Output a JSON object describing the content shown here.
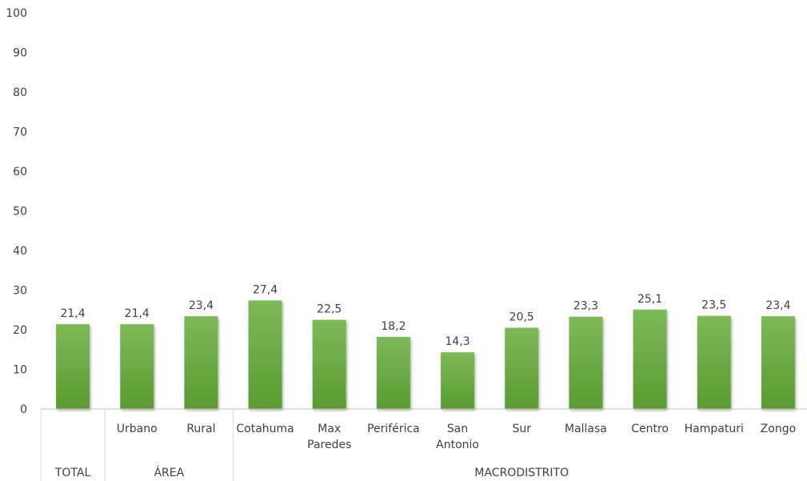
{
  "chart_data": {
    "type": "bar",
    "title": "",
    "xlabel": "",
    "ylabel": "",
    "ylim": [
      0,
      100
    ],
    "yticks": [
      0,
      10,
      20,
      30,
      40,
      50,
      60,
      70,
      80,
      90,
      100
    ],
    "grid": false,
    "legend": "none",
    "bar_color": "#6aab3f",
    "categories": [
      {
        "label": "",
        "group": "TOTAL",
        "value": 21.4,
        "value_label": "21,4"
      },
      {
        "label": "Urbano",
        "group": "ÁREA",
        "value": 21.4,
        "value_label": "21,4"
      },
      {
        "label": "Rural",
        "group": "ÁREA",
        "value": 23.4,
        "value_label": "23,4"
      },
      {
        "label": "Cotahuma",
        "group": "MACRODISTRITO",
        "value": 27.4,
        "value_label": "27,4"
      },
      {
        "label": "Max\nParedes",
        "group": "MACRODISTRITO",
        "value": 22.5,
        "value_label": "22,5"
      },
      {
        "label": "Periférica",
        "group": "MACRODISTRITO",
        "value": 18.2,
        "value_label": "18,2"
      },
      {
        "label": "San\nAntonio",
        "group": "MACRODISTRITO",
        "value": 14.3,
        "value_label": "14,3"
      },
      {
        "label": "Sur",
        "group": "MACRODISTRITO",
        "value": 20.5,
        "value_label": "20,5"
      },
      {
        "label": "Mallasa",
        "group": "MACRODISTRITO",
        "value": 23.3,
        "value_label": "23,3"
      },
      {
        "label": "Centro",
        "group": "MACRODISTRITO",
        "value": 25.1,
        "value_label": "25,1"
      },
      {
        "label": "Hampaturi",
        "group": "MACRODISTRITO",
        "value": 23.5,
        "value_label": "23,5"
      },
      {
        "label": "Zongo",
        "group": "MACRODISTRITO",
        "value": 23.4,
        "value_label": "23,4"
      }
    ],
    "groups": [
      {
        "name": "TOTAL",
        "count": 1
      },
      {
        "name": "ÁREA",
        "count": 2
      },
      {
        "name": "MACRODISTRITO",
        "count": 9
      }
    ]
  }
}
